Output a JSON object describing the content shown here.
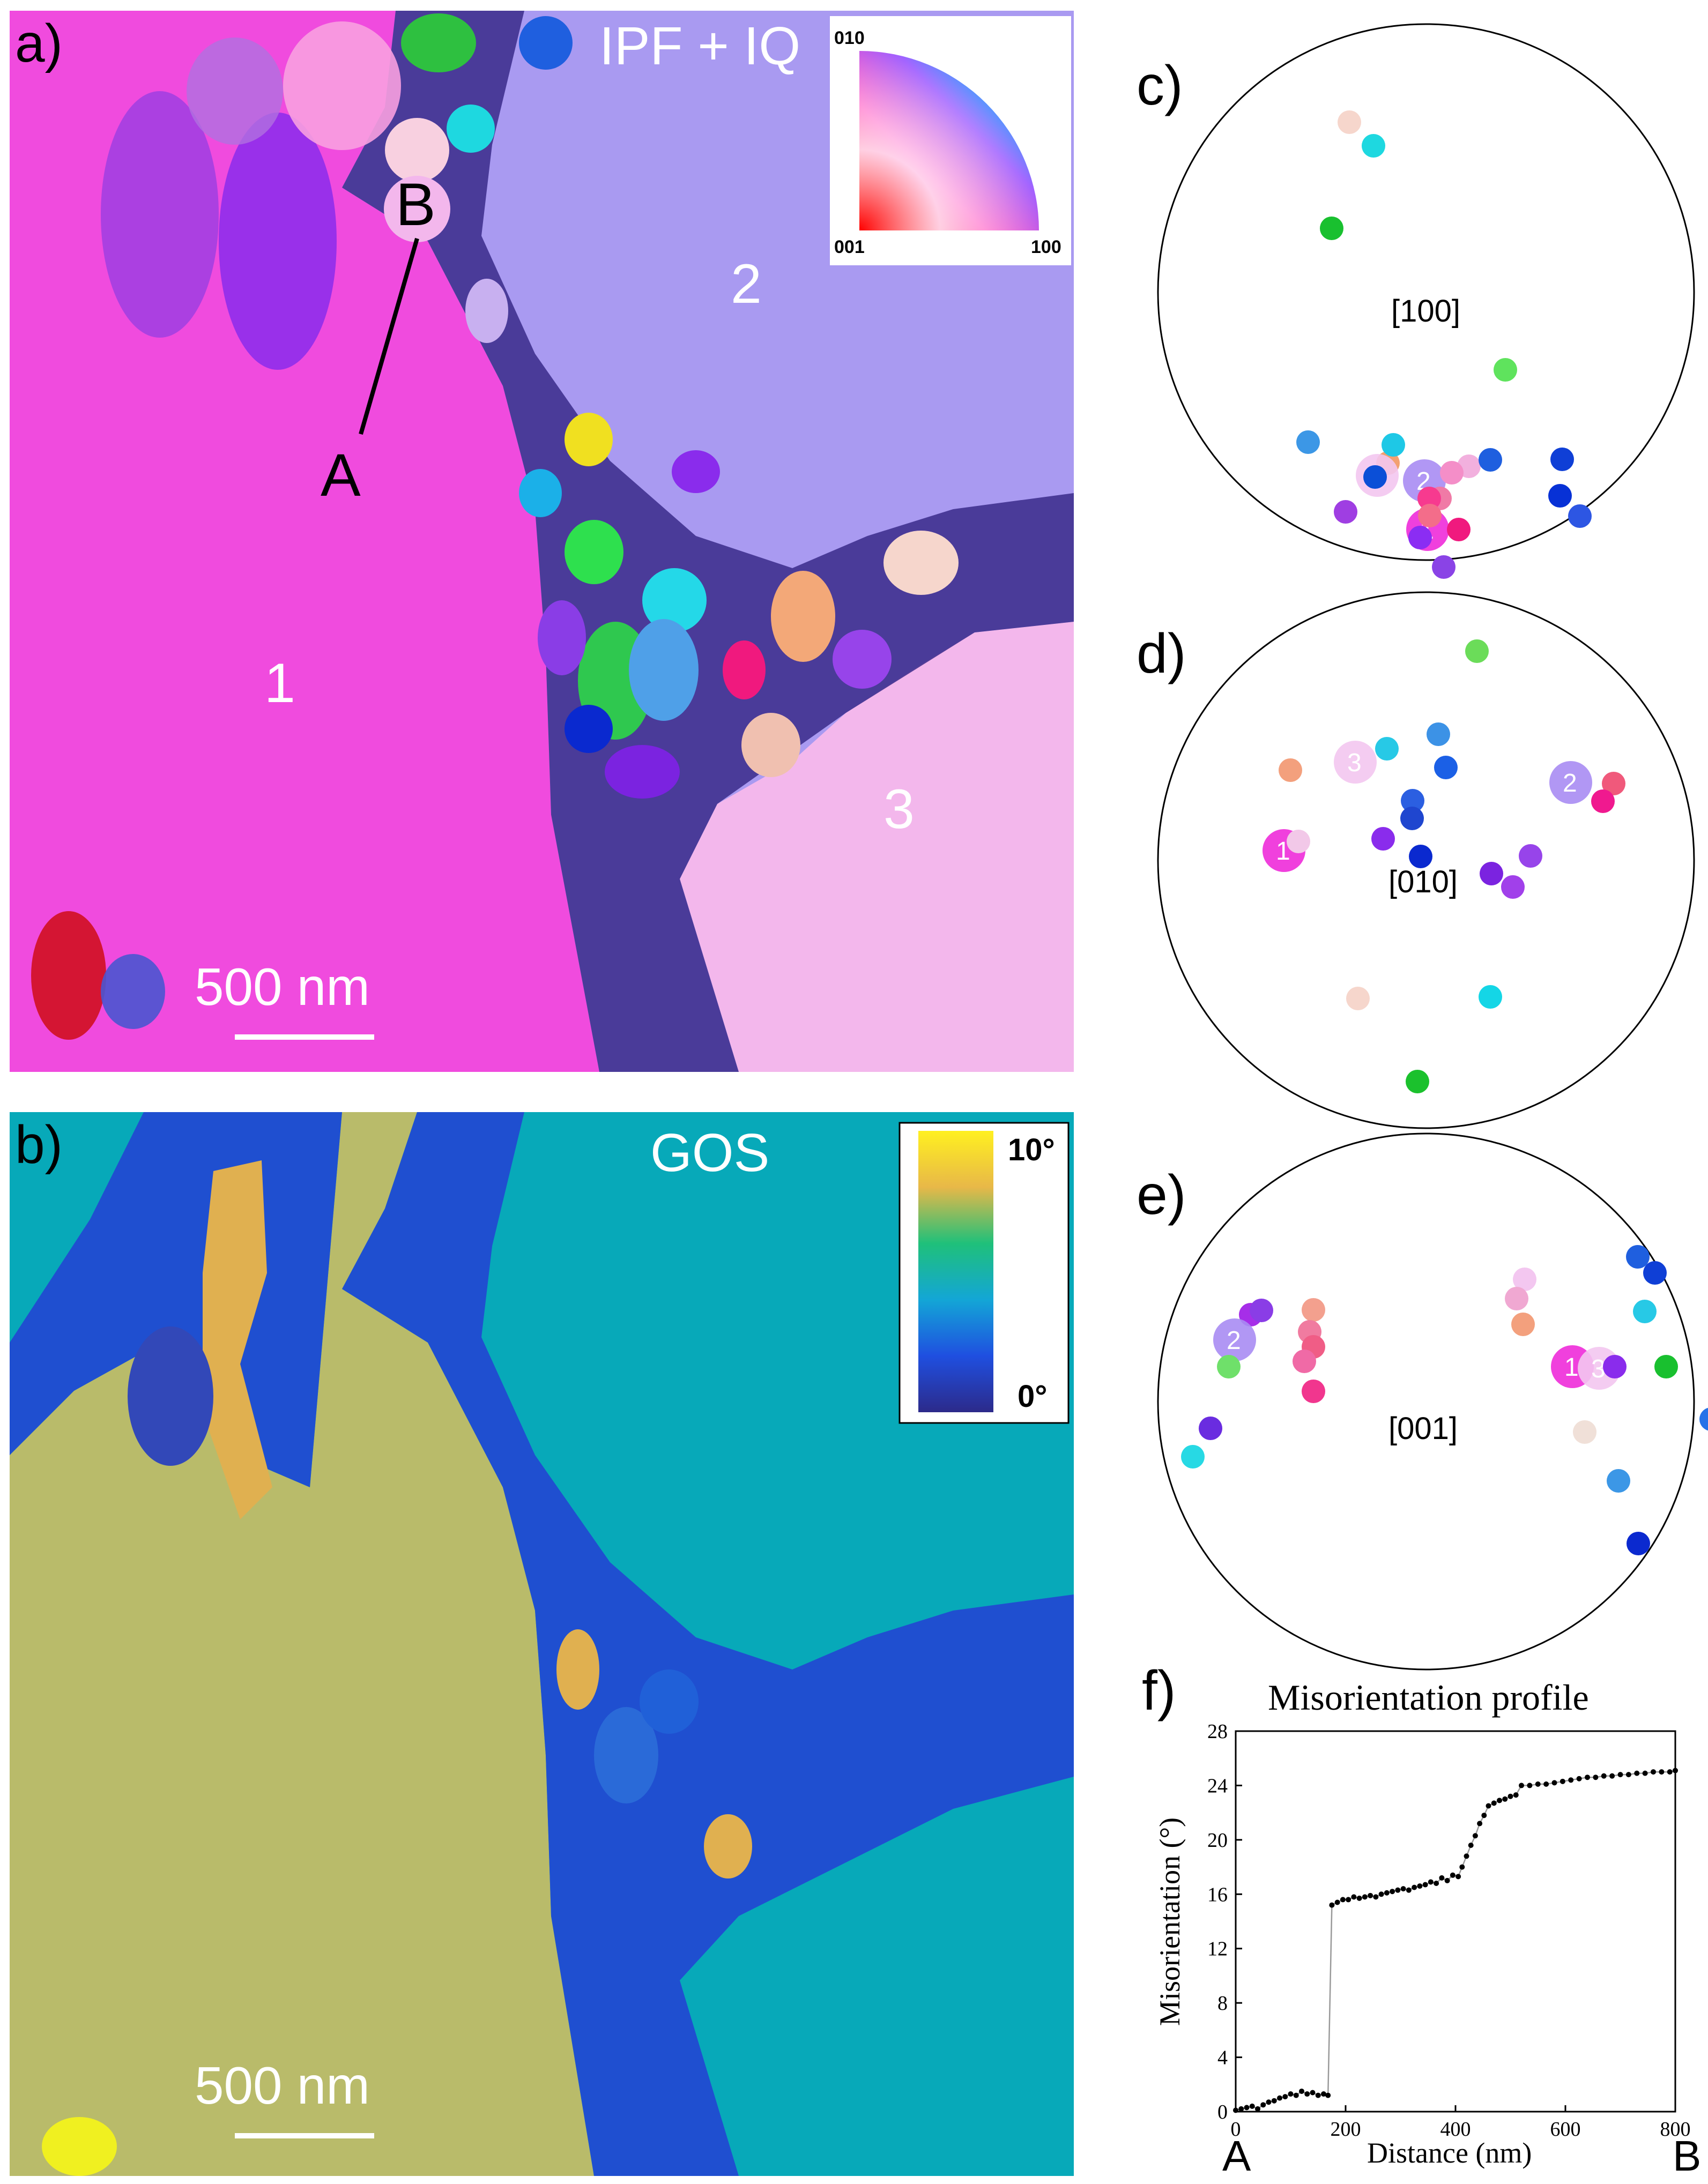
{
  "panels": {
    "a": {
      "letter": "a)",
      "title": "IPF + IQ",
      "scale_bar": "500 nm",
      "grain_labels": [
        "1",
        "2",
        "3"
      ],
      "line_endpoints": {
        "start": "A",
        "end": "B"
      },
      "legend": {
        "top": "010",
        "bottom_left": "001",
        "bottom_right": "100"
      }
    },
    "b": {
      "letter": "b)",
      "title": "GOS",
      "scale_bar": "500 nm",
      "colorbar": {
        "max_label": "10°",
        "min_label": "0°"
      }
    },
    "c": {
      "letter": "c)",
      "pole": "[100]"
    },
    "d": {
      "letter": "d)",
      "pole": "[010]"
    },
    "e": {
      "letter": "e)",
      "pole": "[001]"
    },
    "f": {
      "letter": "f)",
      "endpoint_start": "A",
      "endpoint_end": "B"
    }
  },
  "colors": {
    "grain1": "#f04bde",
    "grain2": "#a99af1",
    "grain3": "#f3b7ec",
    "gos_high": "#b9bb6a",
    "gos_mid": "#07a9b9",
    "gos_low": "#1f45c8"
  },
  "pole_figures": {
    "c": [
      {
        "color": "#f6d6cc"
      },
      {
        "color": "#1ed8e0"
      },
      {
        "color": "#19c02f"
      },
      {
        "color": "#5fe35d"
      },
      {
        "color": "#3c97e6"
      },
      {
        "color": "#f3a070"
      },
      {
        "color": "#f3c7f0",
        "label": "3"
      },
      {
        "color": "#0b4fd7"
      },
      {
        "color": "#a88cf3",
        "label": "2"
      },
      {
        "color": "#1ec8e6"
      },
      {
        "color": "#f2b0de"
      },
      {
        "color": "#f07aa6"
      },
      {
        "color": "#f48ec8"
      },
      {
        "color": "#1f5fdf"
      },
      {
        "color": "#0f3fd6"
      },
      {
        "color": "#0731d6"
      },
      {
        "color": "#2d56e3"
      },
      {
        "color": "#9f3ee2"
      },
      {
        "color": "#ee2bd9",
        "label": "1"
      },
      {
        "color": "#8b2df3"
      },
      {
        "color": "#f0197e"
      },
      {
        "color": "#f73a8f"
      },
      {
        "color": "#f36d8a"
      },
      {
        "color": "#8a43e6"
      }
    ],
    "d": [
      {
        "color": "#6bdc59"
      },
      {
        "color": "#f3a07d"
      },
      {
        "color": "#f3c7f0",
        "label": "3"
      },
      {
        "color": "#27c9e6"
      },
      {
        "color": "#3c92e6"
      },
      {
        "color": "#1b60e6"
      },
      {
        "color": "#a88cf3",
        "label": "2"
      },
      {
        "color": "#f0597b"
      },
      {
        "color": "#f0198f"
      },
      {
        "color": "#2b5fe1"
      },
      {
        "color": "#1f46cf"
      },
      {
        "color": "#ee2bd9",
        "label": "1"
      },
      {
        "color": "#f2c8e8"
      },
      {
        "color": "#8a2cec"
      },
      {
        "color": "#0a29cf"
      },
      {
        "color": "#7b23e0"
      },
      {
        "color": "#9744ea"
      },
      {
        "color": "#a140ea"
      },
      {
        "color": "#f6d6cc"
      },
      {
        "color": "#14d6e6"
      },
      {
        "color": "#1bc12d"
      }
    ],
    "e": [
      {
        "color": "#1f5fdf"
      },
      {
        "color": "#0f3fd6"
      },
      {
        "color": "#f3c7f0"
      },
      {
        "color": "#f0a8d2"
      },
      {
        "color": "#f3a07d"
      },
      {
        "color": "#a62ee8"
      },
      {
        "color": "#8a3de6"
      },
      {
        "color": "#a88cf3",
        "label": "2"
      },
      {
        "color": "#f3a08e"
      },
      {
        "color": "#f07ba0"
      },
      {
        "color": "#f05d86"
      },
      {
        "color": "#f06aa6"
      },
      {
        "color": "#f1368e"
      },
      {
        "color": "#6fe06a"
      },
      {
        "color": "#f0e0d8"
      },
      {
        "color": "#ee2bd9",
        "label": "1"
      },
      {
        "color": "#f3c7f0",
        "label": "3"
      },
      {
        "color": "#8a2cec"
      },
      {
        "color": "#27c9e6"
      },
      {
        "color": "#19c02f"
      },
      {
        "color": "#2672e8"
      },
      {
        "color": "#6a2ce0"
      },
      {
        "color": "#27d9e4"
      },
      {
        "color": "#3c97e6"
      },
      {
        "color": "#0b29cf"
      }
    ]
  },
  "chart_data": {
    "type": "scatter",
    "title": "Misorientation profile",
    "xlabel": "Distance (nm)",
    "ylabel": "Misorientation (°)",
    "xlim": [
      0,
      800
    ],
    "ylim": [
      0,
      28
    ],
    "xticks": [
      0,
      200,
      400,
      600,
      800
    ],
    "yticks": [
      0,
      4,
      8,
      12,
      16,
      20,
      24,
      28
    ],
    "grid": false,
    "legend": "none",
    "series": [
      {
        "x": [
          0,
          10,
          20,
          30,
          40,
          50,
          60,
          70,
          80,
          90,
          100,
          110,
          120,
          130,
          140,
          150,
          160,
          168,
          175,
          185,
          195,
          205,
          215,
          225,
          235,
          245,
          255,
          265,
          275,
          285,
          295,
          305,
          315,
          325,
          335,
          345,
          355,
          365,
          375,
          385,
          395,
          405,
          412,
          420,
          428,
          436,
          444,
          452,
          460,
          470,
          480,
          490,
          500,
          510,
          520,
          535,
          550,
          565,
          580,
          595,
          610,
          625,
          640,
          655,
          670,
          685,
          700,
          715,
          730,
          745,
          760,
          775,
          790,
          800
        ],
        "y": [
          0.1,
          0.2,
          0.3,
          0.4,
          0.2,
          0.5,
          0.7,
          0.8,
          1.0,
          1.1,
          1.3,
          1.2,
          1.5,
          1.3,
          1.4,
          1.2,
          1.3,
          1.2,
          15.2,
          15.4,
          15.6,
          15.6,
          15.8,
          15.7,
          15.8,
          15.9,
          15.8,
          16.0,
          16.1,
          16.2,
          16.3,
          16.4,
          16.3,
          16.5,
          16.6,
          16.7,
          16.9,
          16.8,
          17.2,
          17.0,
          17.4,
          17.3,
          18.0,
          18.8,
          19.6,
          20.3,
          21.2,
          21.8,
          22.5,
          22.7,
          22.9,
          23.0,
          23.2,
          23.3,
          24.0,
          24.0,
          24.1,
          24.1,
          24.2,
          24.3,
          24.4,
          24.5,
          24.6,
          24.6,
          24.7,
          24.7,
          24.8,
          24.8,
          24.9,
          24.9,
          25.0,
          25.0,
          25.0,
          25.1
        ]
      }
    ]
  }
}
